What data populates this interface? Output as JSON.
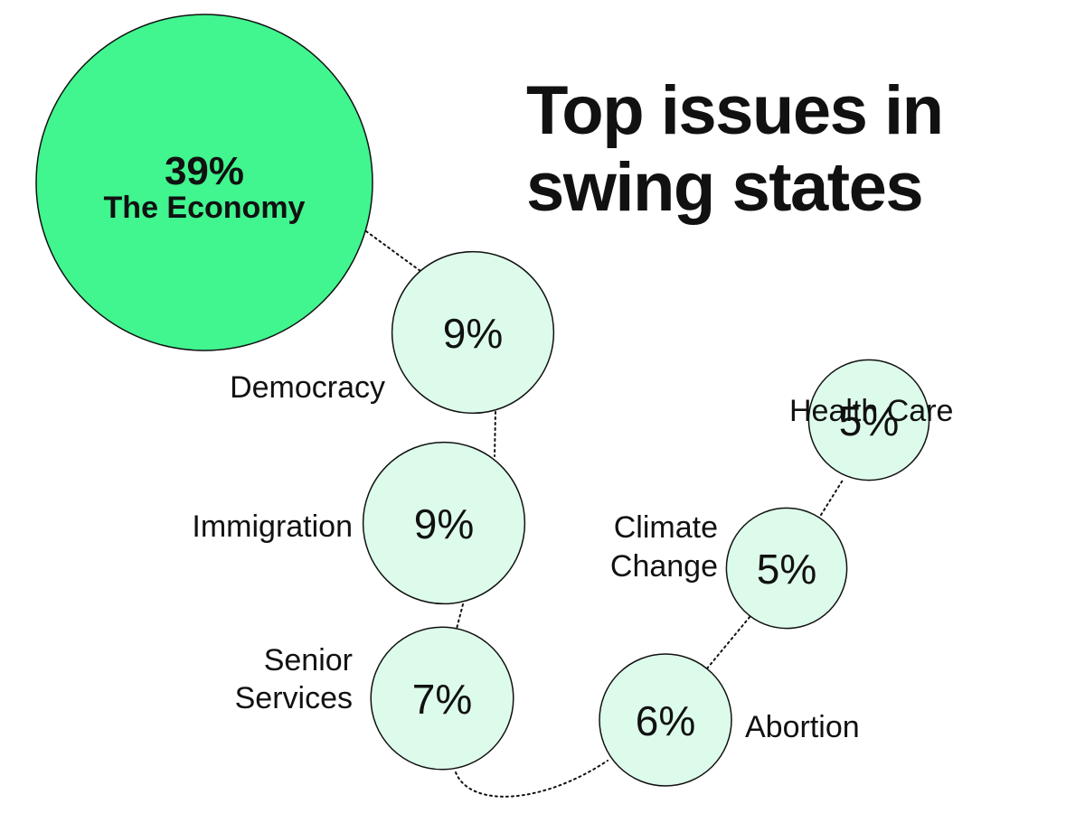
{
  "title_lines": [
    "Top issues in",
    "swing states"
  ],
  "colors": {
    "highlight_fill": "#41F58F",
    "bubble_fill": "#DDFBEB",
    "stroke": "#111111",
    "text": "#111111"
  },
  "chart_data": {
    "type": "bubble",
    "title": "Top issues in swing states",
    "unit": "%",
    "issues": [
      {
        "name": "The Economy",
        "value": 39,
        "value_label": "39%",
        "label_lines": [
          "The Economy"
        ],
        "highlight": true
      },
      {
        "name": "Democracy",
        "value": 9,
        "value_label": "9%",
        "label_lines": [
          "Democracy"
        ],
        "highlight": false
      },
      {
        "name": "Immigration",
        "value": 9,
        "value_label": "9%",
        "label_lines": [
          "Immigration"
        ],
        "highlight": false
      },
      {
        "name": "Senior Services",
        "value": 7,
        "value_label": "7%",
        "label_lines": [
          "Senior",
          "Services"
        ],
        "highlight": false
      },
      {
        "name": "Abortion",
        "value": 6,
        "value_label": "6%",
        "label_lines": [
          "Abortion"
        ],
        "highlight": false
      },
      {
        "name": "Climate Change",
        "value": 5,
        "value_label": "5%",
        "label_lines": [
          "Climate",
          "Change"
        ],
        "highlight": false
      },
      {
        "name": "Health Care",
        "value": 5,
        "value_label": "5%",
        "label_lines": [
          "Health Care"
        ],
        "highlight": false
      }
    ]
  }
}
